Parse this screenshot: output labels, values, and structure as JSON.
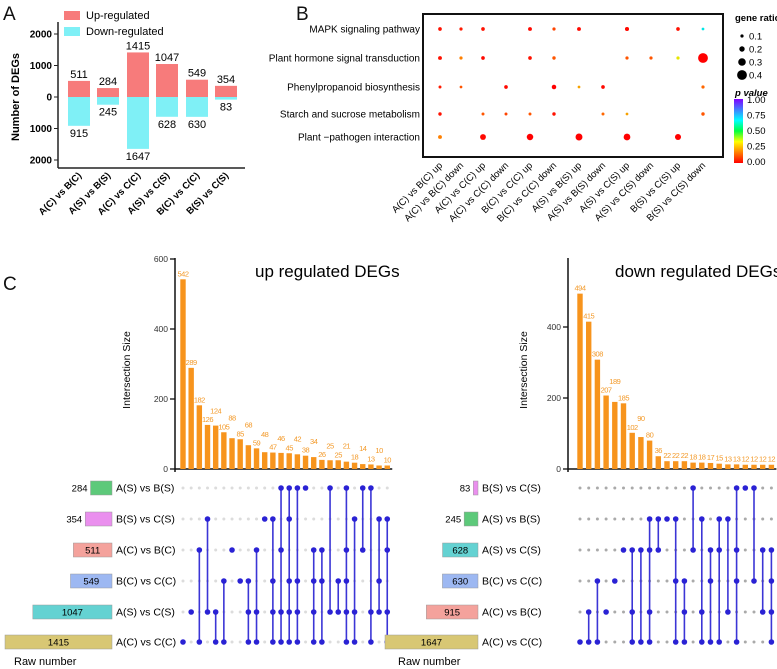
{
  "panel_labels": [
    "A",
    "B",
    "C"
  ],
  "chart_data": [
    {
      "panel": "A",
      "type": "bar",
      "categories": [
        "A(C) vs B(C)",
        "A(S) vs B(S)",
        "A(C) vs C(C)",
        "A(S) vs C(S)",
        "B(C) vs C(C)",
        "B(S) vs C(S)"
      ],
      "series": [
        {
          "name": "Up-regulated",
          "values": [
            511,
            284,
            1415,
            1047,
            549,
            354
          ],
          "color": "#f77b7b",
          "direction": "up"
        },
        {
          "name": "Down-regulated",
          "values": [
            915,
            245,
            1647,
            628,
            630,
            83
          ],
          "color": "#7ff0f6",
          "direction": "down"
        }
      ],
      "ylabel": "Number of DEGs",
      "yticks": [
        2000,
        1000,
        0,
        -1000,
        -2000
      ],
      "ytick_labels": [
        "2000",
        "1000",
        "0",
        "1000",
        "2000"
      ],
      "ylim": [
        -2600,
        2600
      ],
      "legend": "top-left"
    },
    {
      "panel": "B",
      "type": "scatter",
      "x_categories": [
        "A(C) vs B(C) up",
        "A(C) vs B(C) down",
        "A(C) vs C(C) up",
        "A(C) vs C(C) down",
        "B(C) vs C(C) up",
        "B(C) vs C(C) down",
        "A(S) vs B(S) up",
        "A(S) vs B(S) down",
        "A(S) vs C(S) up",
        "A(S) vs C(S) down",
        "B(S) vs C(S) up",
        "B(S) vs C(S) down"
      ],
      "y_categories": [
        "MAPK signaling pathway",
        "Plant hormone signal transduction",
        "Phenylpropanoid biosynthesis",
        "Starch and sucrose metabolism",
        "Plant −pathogen interaction"
      ],
      "points": [
        {
          "y": 0,
          "x": 0,
          "gene_ratio": 0.12,
          "p_value": 0.02
        },
        {
          "y": 0,
          "x": 1,
          "gene_ratio": 0.1,
          "p_value": 0.03
        },
        {
          "y": 0,
          "x": 2,
          "gene_ratio": 0.12,
          "p_value": 0.02
        },
        {
          "y": 0,
          "x": 4,
          "gene_ratio": 0.13,
          "p_value": 0.01
        },
        {
          "y": 0,
          "x": 5,
          "gene_ratio": 0.1,
          "p_value": 0.08
        },
        {
          "y": 0,
          "x": 6,
          "gene_ratio": 0.13,
          "p_value": 0.01
        },
        {
          "y": 0,
          "x": 8,
          "gene_ratio": 0.14,
          "p_value": 0.01
        },
        {
          "y": 0,
          "x": 10,
          "gene_ratio": 0.12,
          "p_value": 0.02
        },
        {
          "y": 0,
          "x": 11,
          "gene_ratio": 0.08,
          "p_value": 0.6
        },
        {
          "y": 1,
          "x": 0,
          "gene_ratio": 0.13,
          "p_value": 0.02
        },
        {
          "y": 1,
          "x": 1,
          "gene_ratio": 0.1,
          "p_value": 0.15
        },
        {
          "y": 1,
          "x": 2,
          "gene_ratio": 0.12,
          "p_value": 0.01
        },
        {
          "y": 1,
          "x": 4,
          "gene_ratio": 0.12,
          "p_value": 0.02
        },
        {
          "y": 1,
          "x": 5,
          "gene_ratio": 0.11,
          "p_value": 0.1
        },
        {
          "y": 1,
          "x": 8,
          "gene_ratio": 0.1,
          "p_value": 0.1
        },
        {
          "y": 1,
          "x": 9,
          "gene_ratio": 0.1,
          "p_value": 0.1
        },
        {
          "y": 1,
          "x": 10,
          "gene_ratio": 0.1,
          "p_value": 0.3
        },
        {
          "y": 1,
          "x": 11,
          "gene_ratio": 0.4,
          "p_value": 0.0
        },
        {
          "y": 2,
          "x": 0,
          "gene_ratio": 0.09,
          "p_value": 0.03
        },
        {
          "y": 2,
          "x": 1,
          "gene_ratio": 0.08,
          "p_value": 0.1
        },
        {
          "y": 2,
          "x": 3,
          "gene_ratio": 0.12,
          "p_value": 0.01
        },
        {
          "y": 2,
          "x": 5,
          "gene_ratio": 0.16,
          "p_value": 0.0
        },
        {
          "y": 2,
          "x": 6,
          "gene_ratio": 0.08,
          "p_value": 0.2
        },
        {
          "y": 2,
          "x": 7,
          "gene_ratio": 0.12,
          "p_value": 0.01
        },
        {
          "y": 2,
          "x": 11,
          "gene_ratio": 0.1,
          "p_value": 0.12
        },
        {
          "y": 3,
          "x": 0,
          "gene_ratio": 0.11,
          "p_value": 0.02
        },
        {
          "y": 3,
          "x": 2,
          "gene_ratio": 0.09,
          "p_value": 0.1
        },
        {
          "y": 3,
          "x": 3,
          "gene_ratio": 0.09,
          "p_value": 0.08
        },
        {
          "y": 3,
          "x": 4,
          "gene_ratio": 0.09,
          "p_value": 0.1
        },
        {
          "y": 3,
          "x": 5,
          "gene_ratio": 0.11,
          "p_value": 0.02
        },
        {
          "y": 3,
          "x": 7,
          "gene_ratio": 0.09,
          "p_value": 0.12
        },
        {
          "y": 3,
          "x": 8,
          "gene_ratio": 0.08,
          "p_value": 0.2
        },
        {
          "y": 3,
          "x": 11,
          "gene_ratio": 0.11,
          "p_value": 0.1
        },
        {
          "y": 4,
          "x": 0,
          "gene_ratio": 0.13,
          "p_value": 0.15
        },
        {
          "y": 4,
          "x": 2,
          "gene_ratio": 0.22,
          "p_value": 0.01
        },
        {
          "y": 4,
          "x": 4,
          "gene_ratio": 0.25,
          "p_value": 0.0
        },
        {
          "y": 4,
          "x": 6,
          "gene_ratio": 0.27,
          "p_value": 0.0
        },
        {
          "y": 4,
          "x": 8,
          "gene_ratio": 0.26,
          "p_value": 0.0
        },
        {
          "y": 4,
          "x": 10,
          "gene_ratio": 0.23,
          "p_value": 0.0
        }
      ],
      "size_legend": {
        "title": "gene ratio",
        "values": [
          0.1,
          0.2,
          0.3,
          0.4
        ],
        "labels": [
          "0.1",
          "0.2",
          "0.3",
          "0.4"
        ]
      },
      "color_legend": {
        "title": "p value",
        "range": [
          0,
          1
        ],
        "labels": [
          "1.00",
          "0.75",
          "0.50",
          "0.25",
          "0.00"
        ],
        "colors": [
          "#ff0000",
          "#ff8000",
          "#ffff00",
          "#00ff40",
          "#00ffff",
          "#4080ff",
          "#8000ff"
        ]
      }
    },
    {
      "panel": "C-up",
      "type": "bar",
      "title": "up regulated DEGs",
      "ylabel": "Intersection Size",
      "yticks": [
        0,
        200,
        400,
        600
      ],
      "ytick_labels": [
        "0",
        "200",
        "400",
        "600"
      ],
      "values": [
        542,
        289,
        182,
        126,
        124,
        105,
        88,
        85,
        68,
        59,
        48,
        47,
        46,
        45,
        42,
        38,
        34,
        26,
        25,
        25,
        21,
        18,
        14,
        13,
        10,
        10
      ],
      "bar_color": "#f7941d",
      "sets": [
        {
          "label": "A(S) vs B(S)",
          "size": 284,
          "color": "#5dc97a"
        },
        {
          "label": "B(S) vs C(S)",
          "size": 354,
          "color": "#ea8fee"
        },
        {
          "label": "A(C) vs B(C)",
          "size": 511,
          "color": "#f4a29c"
        },
        {
          "label": "B(C) vs C(C)",
          "size": 549,
          "color": "#9db8f2"
        },
        {
          "label": "A(S) vs C(S)",
          "size": 1047,
          "color": "#64d2d2"
        },
        {
          "label": "A(C) vs C(C)",
          "size": 1415,
          "color": "#d8c774"
        }
      ],
      "intersections": [
        [
          5
        ],
        [
          4
        ],
        [
          2,
          5
        ],
        [
          1,
          4
        ],
        [
          4,
          5
        ],
        [
          3,
          5
        ],
        [
          2
        ],
        [
          3
        ],
        [
          3,
          4,
          5
        ],
        [
          2,
          4,
          5
        ],
        [
          1
        ],
        [
          1,
          3,
          4,
          5
        ],
        [
          0,
          2,
          4,
          5
        ],
        [
          0,
          1,
          3,
          4,
          5
        ],
        [
          0,
          3,
          4,
          5
        ],
        [
          0
        ],
        [
          2,
          3,
          4,
          5
        ],
        [
          2,
          3,
          5
        ],
        [
          0,
          4
        ],
        [
          3,
          4
        ],
        [
          0,
          2,
          3,
          4,
          5
        ],
        [
          1,
          4,
          5
        ],
        [
          0,
          2
        ],
        [
          0,
          4,
          5
        ],
        [
          1,
          3,
          4
        ],
        [
          1,
          2,
          4,
          5
        ]
      ],
      "set_axis_label": "Raw number"
    },
    {
      "panel": "C-down",
      "type": "bar",
      "title": "down regulated DEGs",
      "ylabel": "Intersection Size",
      "yticks": [
        0,
        200,
        400
      ],
      "ytick_labels": [
        "0",
        "200",
        "400"
      ],
      "values": [
        494,
        415,
        308,
        207,
        189,
        185,
        102,
        90,
        80,
        36,
        22,
        22,
        22,
        18,
        18,
        17,
        15,
        13,
        13,
        12,
        12,
        12,
        12
      ],
      "bar_color": "#f7941d",
      "sets": [
        {
          "label": "B(S) vs C(S)",
          "size": 83,
          "color": "#ea8fee"
        },
        {
          "label": "A(S) vs B(S)",
          "size": 245,
          "color": "#5dc97a"
        },
        {
          "label": "A(S) vs C(S)",
          "size": 628,
          "color": "#64d2d2"
        },
        {
          "label": "B(C) vs C(C)",
          "size": 630,
          "color": "#9db8f2"
        },
        {
          "label": "A(C) vs B(C)",
          "size": 915,
          "color": "#f4a29c"
        },
        {
          "label": "A(C) vs C(C)",
          "size": 1647,
          "color": "#d8c774"
        }
      ],
      "intersections": [
        [
          5
        ],
        [
          4,
          5
        ],
        [
          3,
          5
        ],
        [
          4
        ],
        [
          3
        ],
        [
          2
        ],
        [
          2,
          4,
          5
        ],
        [
          2,
          5
        ],
        [
          1,
          2,
          4,
          5
        ],
        [
          1,
          2
        ],
        [
          1
        ],
        [
          1,
          3,
          5
        ],
        [
          3,
          4,
          5
        ],
        [
          0,
          2
        ],
        [
          1,
          4,
          5
        ],
        [
          2,
          3,
          5
        ],
        [
          1,
          2,
          5
        ],
        [
          1,
          4
        ],
        [
          0,
          2,
          3,
          5
        ],
        [
          0
        ],
        [
          0,
          3
        ],
        [
          2,
          4
        ],
        [
          2,
          3,
          4,
          5
        ]
      ],
      "set_axis_label": "Raw number"
    }
  ]
}
